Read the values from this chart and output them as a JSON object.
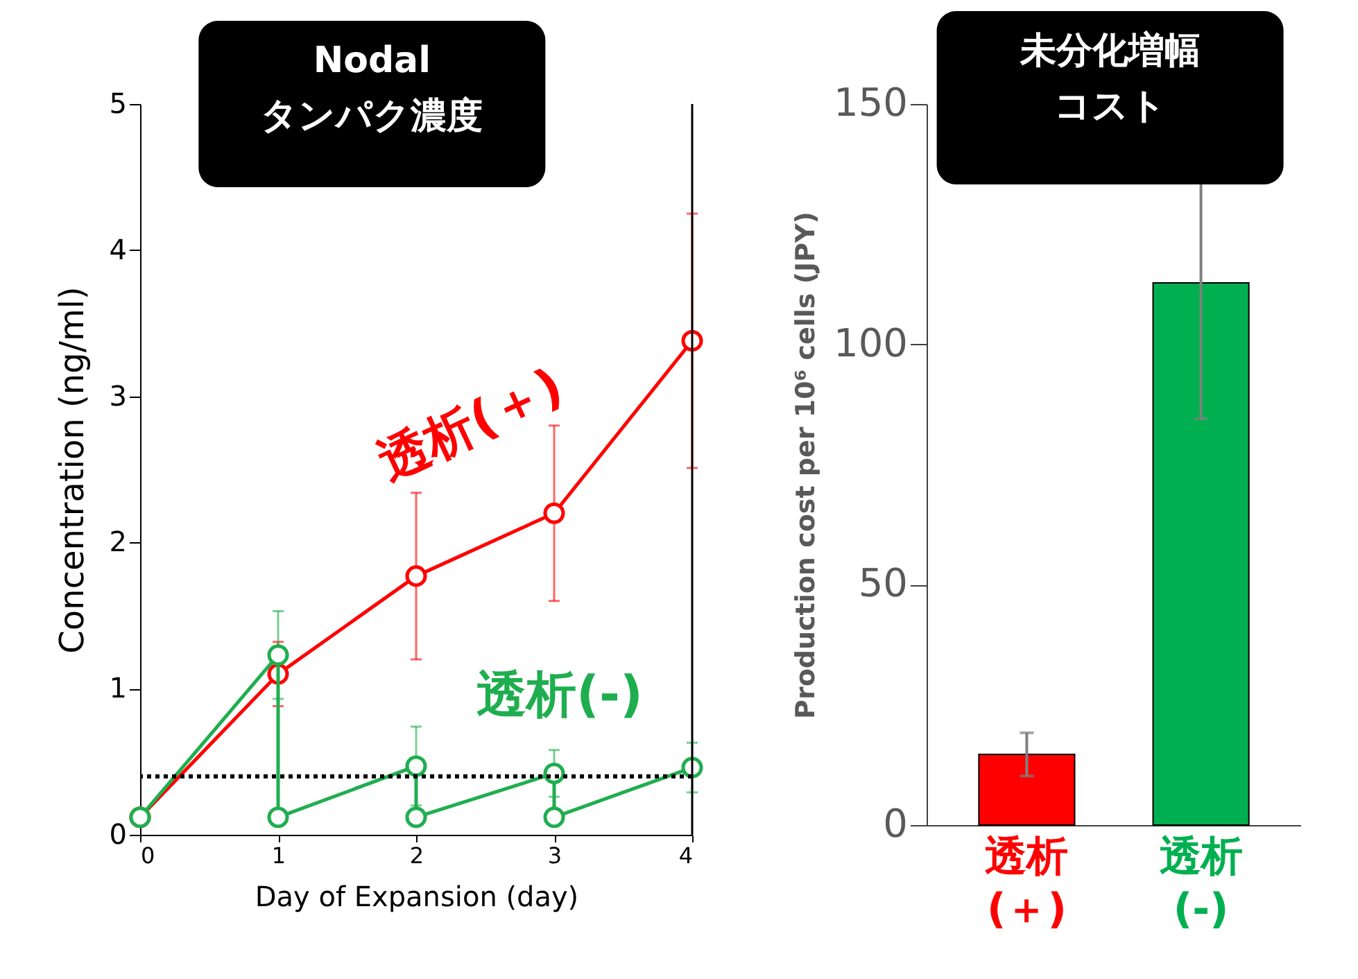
{
  "chart_data": [
    {
      "type": "line",
      "title": [
        "Nodal",
        "タンパク濃度"
      ],
      "xlabel": "Day of Expansion (day)",
      "ylabel": "Concentration (ng/ml)",
      "series": [
        {
          "name": "透析(＋)",
          "color": "#ff0000",
          "x": [
            0,
            1,
            2,
            3,
            4
          ],
          "values": [
            0.12,
            1.1,
            1.77,
            2.2,
            3.38
          ],
          "errors": [
            null,
            0.22,
            0.57,
            0.6,
            0.87
          ]
        },
        {
          "name": "透析(-)",
          "color": "#1fae4f",
          "x": [
            0,
            1,
            1,
            2,
            2,
            3,
            3,
            4
          ],
          "values": [
            0.12,
            1.23,
            0.12,
            0.47,
            0.12,
            0.42,
            0.12,
            0.46
          ],
          "errors": [
            null,
            0.3,
            null,
            0.27,
            null,
            0.16,
            null,
            0.17
          ]
        }
      ],
      "xlim": [
        0,
        4
      ],
      "xticks": [
        0,
        1,
        2,
        3,
        4
      ],
      "ylim": [
        0,
        5
      ],
      "yticks": [
        0,
        1,
        2,
        3,
        4,
        5
      ],
      "ref_lines": [
        {
          "axis": "y",
          "value": 0.4,
          "color": "#000000",
          "line_style": "dotted"
        }
      ],
      "marker": "circle",
      "line_style": "solid",
      "grid": false,
      "legend": false
    },
    {
      "type": "bar",
      "title": [
        "未分化増幅",
        "コスト"
      ],
      "ylabel": "Production cost  per 10⁶ cells (JPY)",
      "categories": [
        "透析(＋)",
        "透析(-)"
      ],
      "values": [
        14.7,
        112.8
      ],
      "colors": [
        "#ff0000",
        "#00b050"
      ],
      "errors": [
        4.5,
        28.3
      ],
      "ylim": [
        0,
        150
      ],
      "yticks": [
        0,
        50,
        100,
        150
      ],
      "grid": false,
      "legend": false
    }
  ]
}
